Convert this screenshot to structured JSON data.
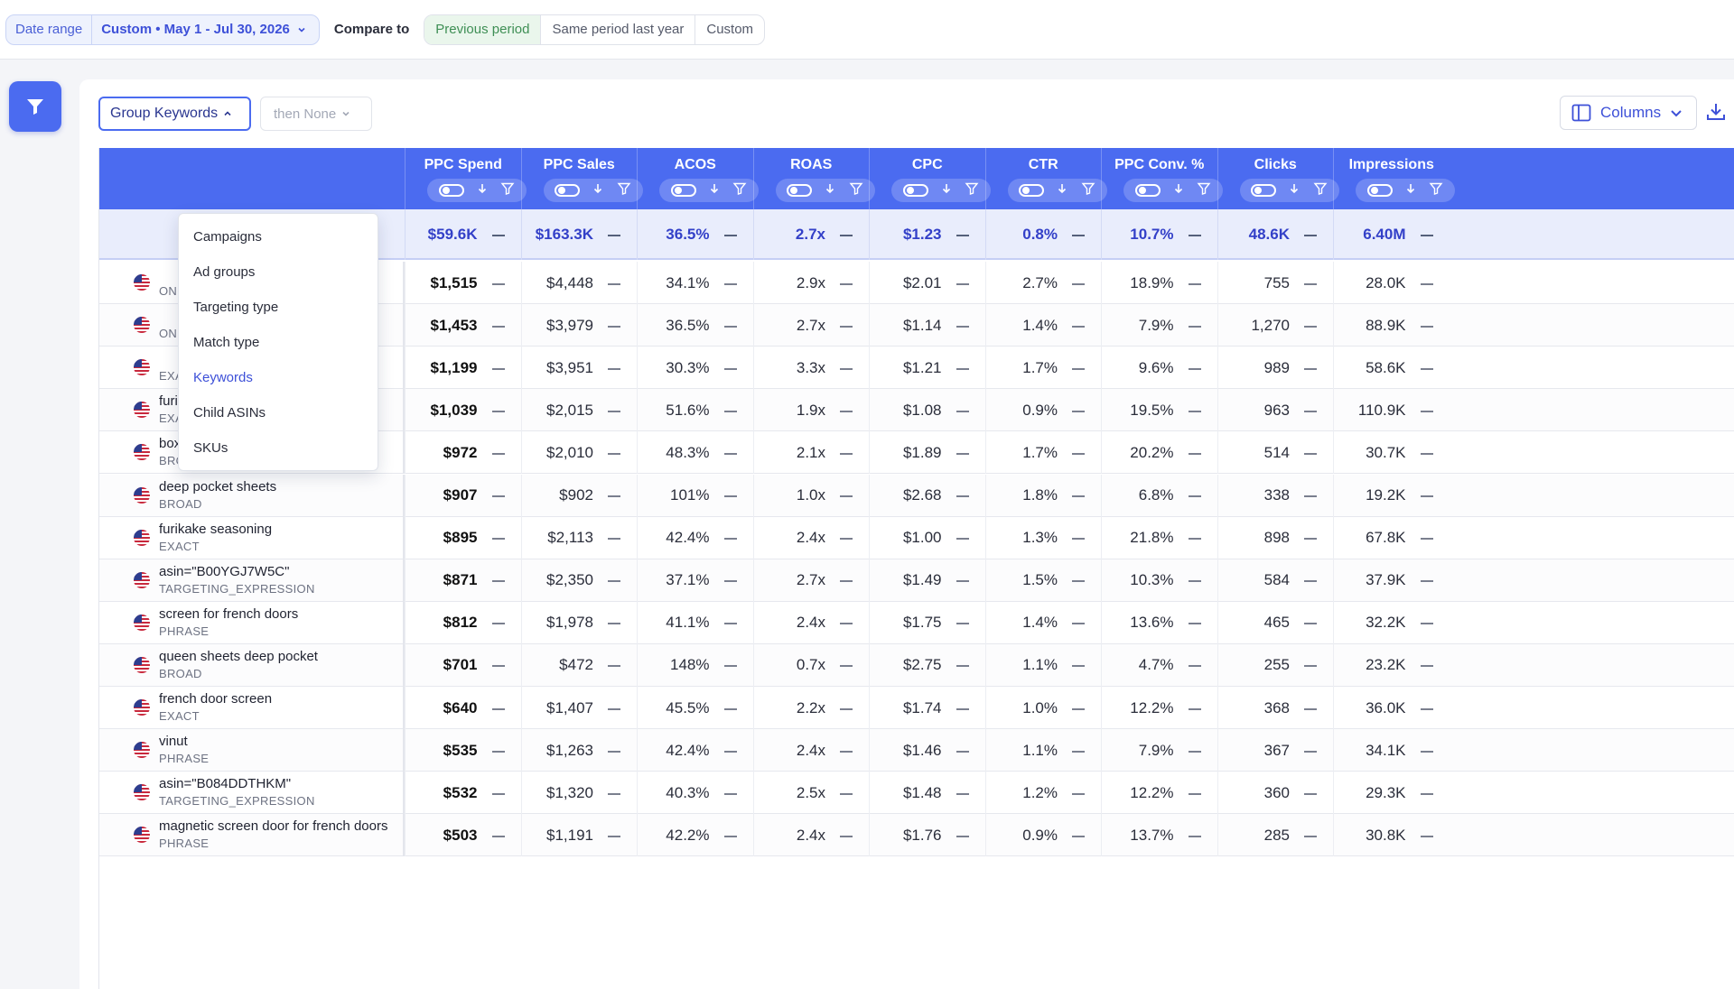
{
  "topbar": {
    "date_range_label": "Date range",
    "date_range_value": "Custom • May 1 - Jul 30, 2026",
    "compare_label": "Compare to",
    "compare_options": [
      "Previous period",
      "Same period last year",
      "Custom"
    ],
    "compare_active": "Previous period"
  },
  "toolbar": {
    "group_label": "Group Keywords",
    "then_label": "then None",
    "columns_label": "Columns"
  },
  "dropdown": {
    "items": [
      "Campaigns",
      "Ad groups",
      "Targeting type",
      "Match type",
      "Keywords",
      "Child ASINs",
      "SKUs"
    ],
    "active": "Keywords"
  },
  "columns": [
    "PPC Spend",
    "PPC Sales",
    "ACOS",
    "ROAS",
    "CPC",
    "CTR",
    "PPC Conv. %",
    "Clicks",
    "Impressions"
  ],
  "totals": [
    "$59.6K",
    "$163.3K",
    "36.5%",
    "2.7x",
    "$1.23",
    "0.8%",
    "10.7%",
    "48.6K",
    "6.40M"
  ],
  "totals_name_fragment": "o",
  "rows": [
    {
      "keyword": "",
      "match": "ON",
      "values": [
        "$1,515",
        "$4,448",
        "34.1%",
        "2.9x",
        "$2.01",
        "2.7%",
        "18.9%",
        "755",
        "28.0K"
      ]
    },
    {
      "keyword": "",
      "match": "ON",
      "values": [
        "$1,453",
        "$3,979",
        "36.5%",
        "2.7x",
        "$1.14",
        "1.4%",
        "7.9%",
        "1,270",
        "88.9K"
      ]
    },
    {
      "keyword": "",
      "match": "EXACT",
      "values": [
        "$1,199",
        "$3,951",
        "30.3%",
        "3.3x",
        "$1.21",
        "1.7%",
        "9.6%",
        "989",
        "58.6K"
      ]
    },
    {
      "keyword": "furikake",
      "match": "EXACT",
      "values": [
        "$1,039",
        "$2,015",
        "51.6%",
        "1.9x",
        "$1.08",
        "0.9%",
        "19.5%",
        "963",
        "110.9K"
      ]
    },
    {
      "keyword": "boxing ball",
      "match": "BROAD",
      "values": [
        "$972",
        "$2,010",
        "48.3%",
        "2.1x",
        "$1.89",
        "1.7%",
        "20.2%",
        "514",
        "30.7K"
      ]
    },
    {
      "keyword": "deep pocket sheets",
      "match": "BROAD",
      "values": [
        "$907",
        "$902",
        "101%",
        "1.0x",
        "$2.68",
        "1.8%",
        "6.8%",
        "338",
        "19.2K"
      ]
    },
    {
      "keyword": "furikake seasoning",
      "match": "EXACT",
      "values": [
        "$895",
        "$2,113",
        "42.4%",
        "2.4x",
        "$1.00",
        "1.3%",
        "21.8%",
        "898",
        "67.8K"
      ]
    },
    {
      "keyword": "asin=\"B00YGJ7W5C\"",
      "match": "TARGETING_EXPRESSION",
      "values": [
        "$871",
        "$2,350",
        "37.1%",
        "2.7x",
        "$1.49",
        "1.5%",
        "10.3%",
        "584",
        "37.9K"
      ]
    },
    {
      "keyword": "screen for french doors",
      "match": "PHRASE",
      "values": [
        "$812",
        "$1,978",
        "41.1%",
        "2.4x",
        "$1.75",
        "1.4%",
        "13.6%",
        "465",
        "32.2K"
      ]
    },
    {
      "keyword": "queen sheets deep pocket",
      "match": "BROAD",
      "values": [
        "$701",
        "$472",
        "148%",
        "0.7x",
        "$2.75",
        "1.1%",
        "4.7%",
        "255",
        "23.2K"
      ]
    },
    {
      "keyword": "french door screen",
      "match": "EXACT",
      "values": [
        "$640",
        "$1,407",
        "45.5%",
        "2.2x",
        "$1.74",
        "1.0%",
        "12.2%",
        "368",
        "36.0K"
      ]
    },
    {
      "keyword": "vinut",
      "match": "PHRASE",
      "values": [
        "$535",
        "$1,263",
        "42.4%",
        "2.4x",
        "$1.46",
        "1.1%",
        "7.9%",
        "367",
        "34.1K"
      ]
    },
    {
      "keyword": "asin=\"B084DDTHKM\"",
      "match": "TARGETING_EXPRESSION",
      "values": [
        "$532",
        "$1,320",
        "40.3%",
        "2.5x",
        "$1.48",
        "1.2%",
        "12.2%",
        "360",
        "29.3K"
      ]
    },
    {
      "keyword": "magnetic screen door for french doors",
      "match": "PHRASE",
      "values": [
        "$503",
        "$1,191",
        "42.2%",
        "2.4x",
        "$1.76",
        "0.9%",
        "13.7%",
        "285",
        "30.8K"
      ]
    }
  ],
  "icons": {
    "filter": "filter-icon",
    "chevron": "chevron-down-icon",
    "columns": "columns-icon",
    "download": "download-icon",
    "flag": "us-flag-icon"
  },
  "colors": {
    "accent": "#4b6bf0",
    "totals_bg": "#e9edfc",
    "active_compare": "#eaf6ec"
  }
}
